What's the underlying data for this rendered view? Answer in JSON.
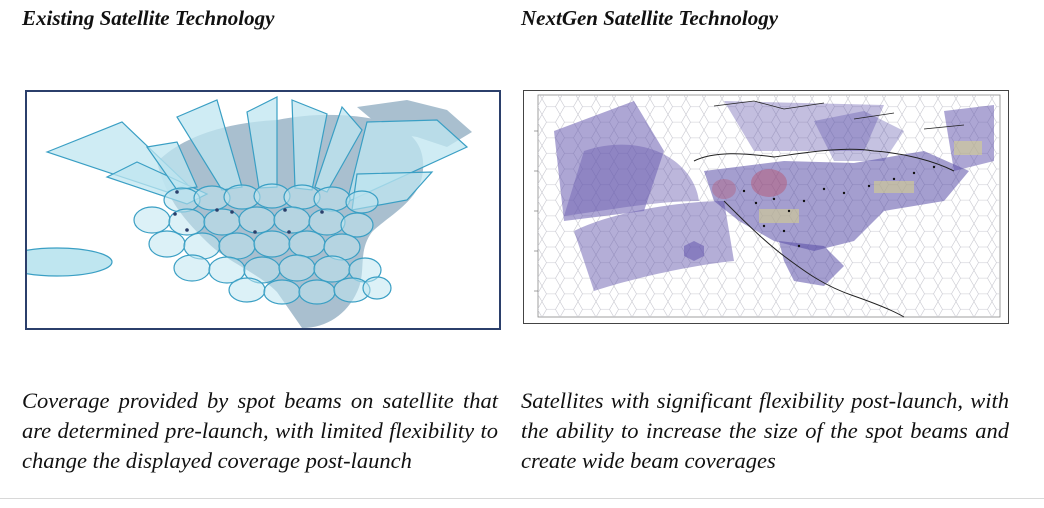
{
  "left": {
    "title": "Existing Satellite Technology",
    "caption": "Coverage provided by spot beams on satellite that are determined pre-launch, with limited flexibility to change the displayed coverage post-launch"
  },
  "right": {
    "title": "NextGen Satellite Technology",
    "caption": "Satellites with significant flexibility post-launch, with the ability to increase the size of the spot beams and create wide beam coverages"
  },
  "colors": {
    "land": "#a9bfcf",
    "beam_fill": "#bfe6f0",
    "beam_stroke": "#3a9fc4",
    "wide_beam": "#6a5db0",
    "map_border": "#2b3f6b"
  }
}
